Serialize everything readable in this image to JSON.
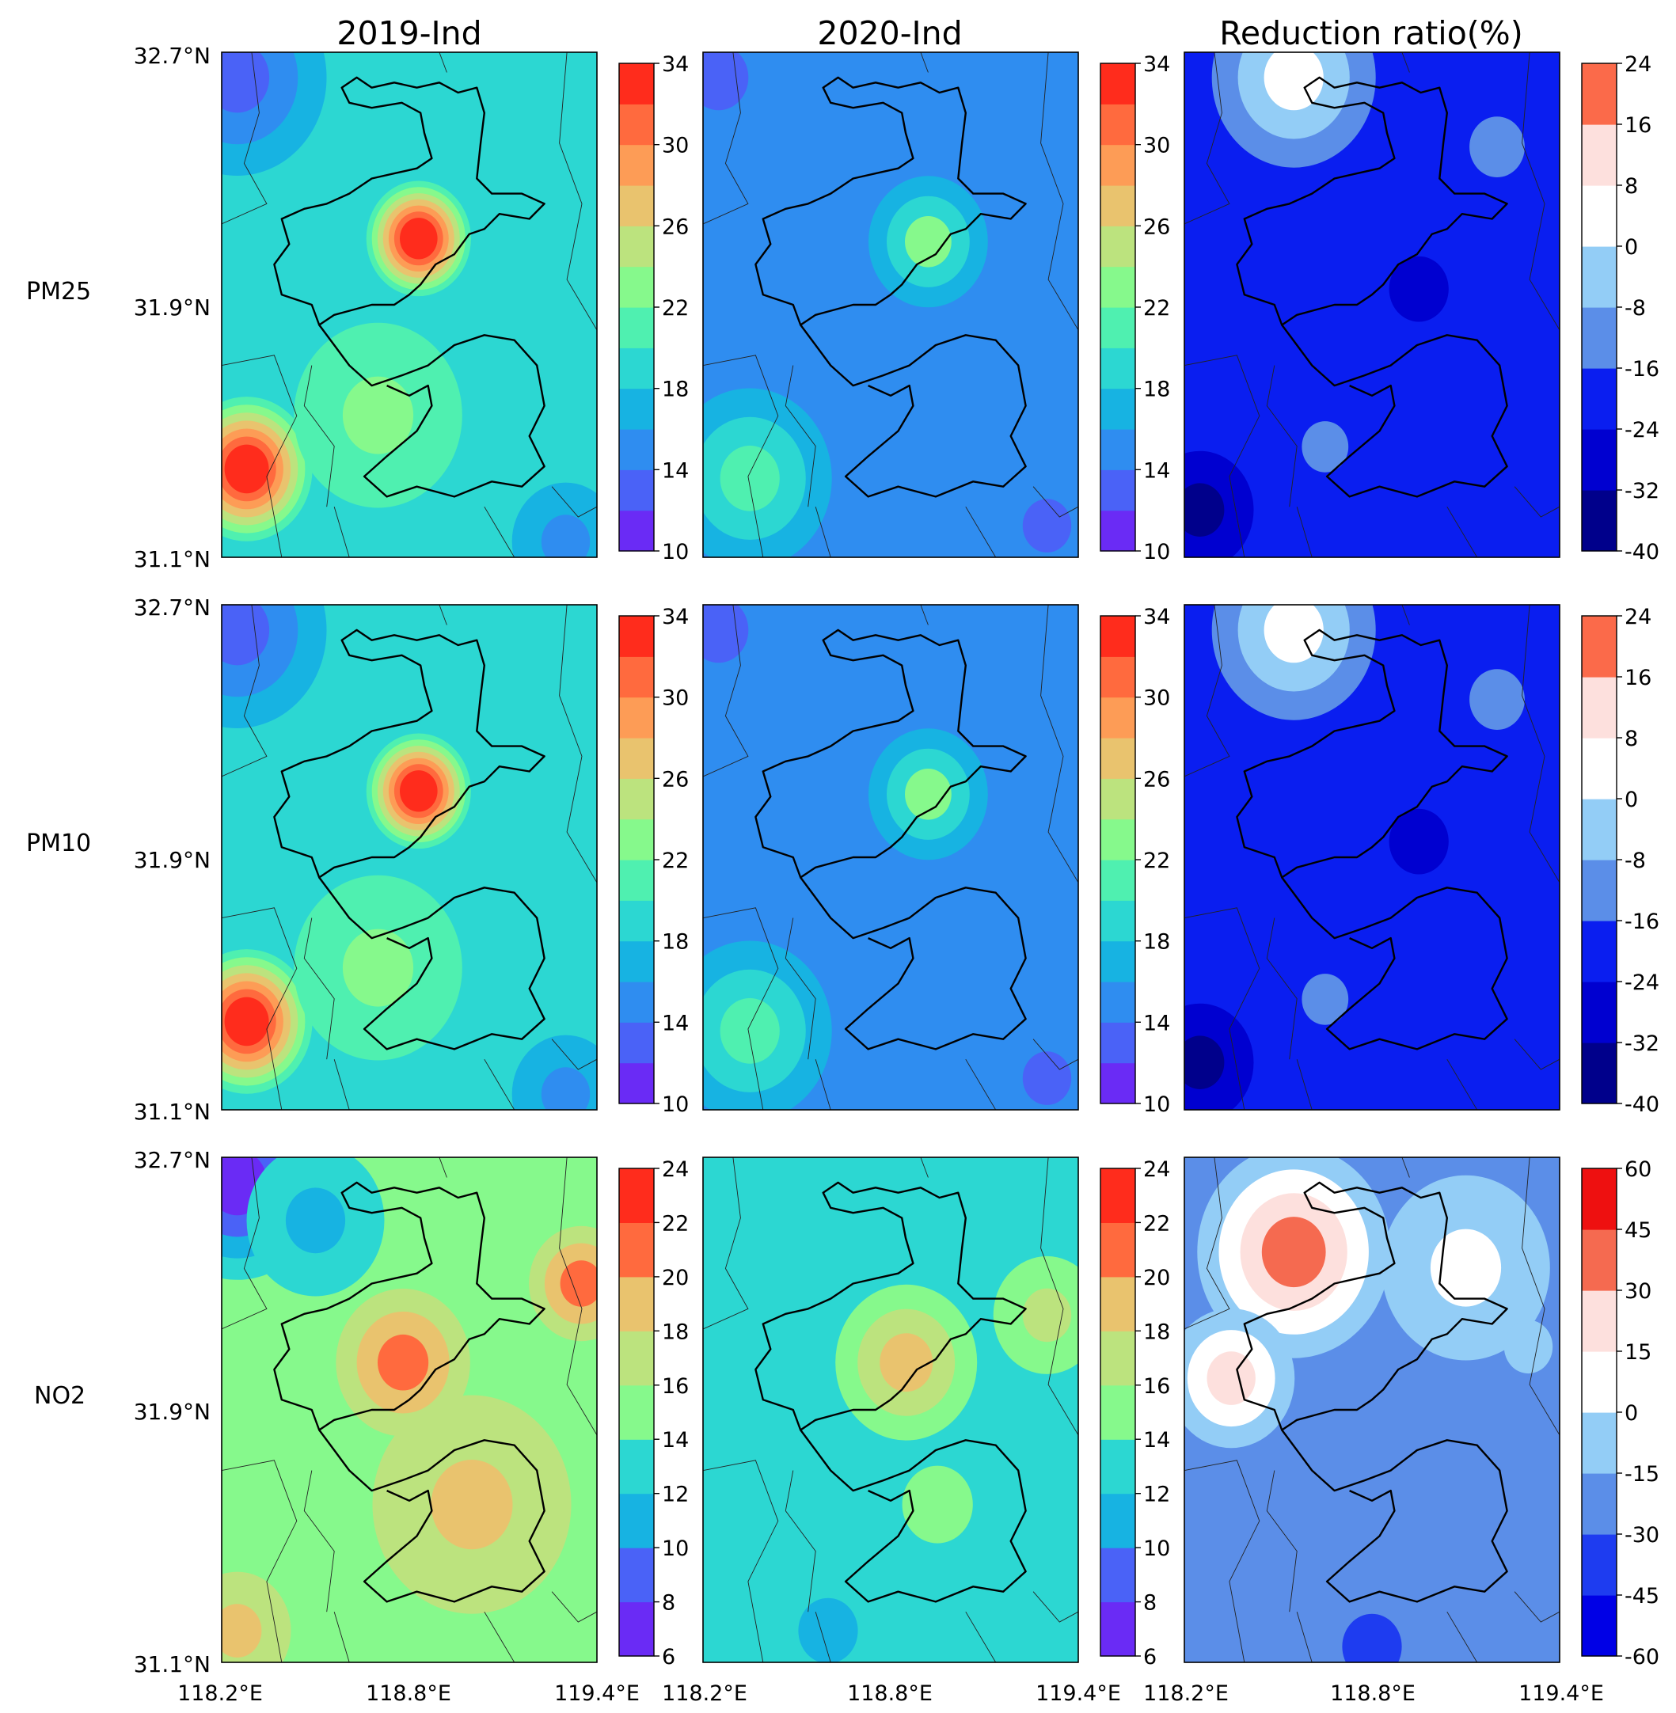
{
  "figure": {
    "column_titles": [
      "2019-Ind",
      "2020-Ind",
      "Reduction ratio(%)"
    ],
    "row_labels": [
      "PM25",
      "PM10",
      "NO2"
    ],
    "lat_ticks": [
      "32.7°N",
      "31.9°N",
      "31.1°N"
    ],
    "lon_ticks": [
      "118.2°E",
      "118.8°E",
      "119.4°E"
    ]
  },
  "chart_data": [
    {
      "type": "heatmap",
      "title": "2019-Ind",
      "row": "PM25",
      "variable": "PM25",
      "colormap": "rainbow",
      "xlim": [
        118.2,
        119.4
      ],
      "ylim": [
        31.1,
        32.7
      ],
      "colorbar": {
        "min": 10,
        "max": 34,
        "step": 2,
        "ticks": [
          "10",
          "14",
          "18",
          "22",
          "26",
          "30",
          "34"
        ]
      },
      "background_value": 19,
      "features": [
        {
          "lon": 118.83,
          "lat": 32.11,
          "value": 33,
          "extent": 0.1
        },
        {
          "lon": 118.28,
          "lat": 31.38,
          "value": 32,
          "extent": 0.13
        },
        {
          "lon": 118.25,
          "lat": 32.62,
          "value": 13,
          "extent": 0.22
        },
        {
          "lon": 118.7,
          "lat": 31.55,
          "value": 23,
          "extent": 0.25
        },
        {
          "lon": 119.3,
          "lat": 31.15,
          "value": 15,
          "extent": 0.15
        }
      ]
    },
    {
      "type": "heatmap",
      "title": "2020-Ind",
      "row": "PM25",
      "variable": "PM25",
      "colormap": "rainbow",
      "xlim": [
        118.2,
        119.4
      ],
      "ylim": [
        31.1,
        32.7
      ],
      "colorbar": {
        "min": 10,
        "max": 34,
        "step": 2,
        "ticks": [
          "10",
          "14",
          "18",
          "22",
          "26",
          "30",
          "34"
        ]
      },
      "background_value": 15.5,
      "features": [
        {
          "lon": 118.92,
          "lat": 32.1,
          "value": 22,
          "extent": 0.14
        },
        {
          "lon": 118.35,
          "lat": 31.35,
          "value": 21,
          "extent": 0.2
        },
        {
          "lon": 118.25,
          "lat": 32.62,
          "value": 13,
          "extent": 0.2
        },
        {
          "lon": 119.3,
          "lat": 31.2,
          "value": 13.5,
          "extent": 0.15
        }
      ]
    },
    {
      "type": "heatmap",
      "title": "Reduction ratio(%)",
      "row": "PM25",
      "variable": "PM25",
      "colormap": "blue-white-red",
      "xlim": [
        118.2,
        119.4
      ],
      "ylim": [
        31.1,
        32.7
      ],
      "colorbar": {
        "min": -40,
        "max": 24,
        "step": 8,
        "ticks": [
          "-40",
          "-32",
          "-24",
          "-16",
          "-8",
          "0",
          "8",
          "16",
          "24"
        ]
      },
      "background_value": -20,
      "features": [
        {
          "lon": 118.55,
          "lat": 32.62,
          "value": 4,
          "extent": 0.2
        },
        {
          "lon": 118.95,
          "lat": 31.95,
          "value": -30,
          "extent": 0.2
        },
        {
          "lon": 118.25,
          "lat": 31.25,
          "value": -33,
          "extent": 0.15
        },
        {
          "lon": 118.65,
          "lat": 31.45,
          "value": -12,
          "extent": 0.14
        },
        {
          "lon": 119.2,
          "lat": 32.4,
          "value": -9,
          "extent": 0.18
        }
      ]
    },
    {
      "type": "heatmap",
      "title": "2019-Ind",
      "row": "PM10",
      "variable": "PM10",
      "colormap": "rainbow",
      "xlim": [
        118.2,
        119.4
      ],
      "ylim": [
        31.1,
        32.7
      ],
      "colorbar": {
        "min": 10,
        "max": 34,
        "step": 2,
        "ticks": [
          "10",
          "14",
          "18",
          "22",
          "26",
          "30",
          "34"
        ]
      },
      "background_value": 19,
      "features": [
        {
          "lon": 118.83,
          "lat": 32.11,
          "value": 33,
          "extent": 0.1
        },
        {
          "lon": 118.28,
          "lat": 31.38,
          "value": 32,
          "extent": 0.13
        },
        {
          "lon": 118.25,
          "lat": 32.62,
          "value": 13,
          "extent": 0.22
        },
        {
          "lon": 118.7,
          "lat": 31.55,
          "value": 23,
          "extent": 0.25
        },
        {
          "lon": 119.3,
          "lat": 31.15,
          "value": 15,
          "extent": 0.15
        }
      ]
    },
    {
      "type": "heatmap",
      "title": "2020-Ind",
      "row": "PM10",
      "variable": "PM10",
      "colormap": "rainbow",
      "xlim": [
        118.2,
        119.4
      ],
      "ylim": [
        31.1,
        32.7
      ],
      "colorbar": {
        "min": 10,
        "max": 34,
        "step": 2,
        "ticks": [
          "10",
          "14",
          "18",
          "22",
          "26",
          "30",
          "34"
        ]
      },
      "background_value": 15.5,
      "features": [
        {
          "lon": 118.92,
          "lat": 32.1,
          "value": 22,
          "extent": 0.14
        },
        {
          "lon": 118.35,
          "lat": 31.35,
          "value": 21,
          "extent": 0.2
        },
        {
          "lon": 118.25,
          "lat": 32.62,
          "value": 13,
          "extent": 0.2
        },
        {
          "lon": 119.3,
          "lat": 31.2,
          "value": 13.5,
          "extent": 0.15
        }
      ]
    },
    {
      "type": "heatmap",
      "title": "Reduction ratio(%)",
      "row": "PM10",
      "variable": "PM10",
      "colormap": "blue-white-red",
      "xlim": [
        118.2,
        119.4
      ],
      "ylim": [
        31.1,
        32.7
      ],
      "colorbar": {
        "min": -40,
        "max": 24,
        "step": 8,
        "ticks": [
          "-40",
          "-32",
          "-24",
          "-16",
          "-8",
          "0",
          "8",
          "16",
          "24"
        ]
      },
      "background_value": -20,
      "features": [
        {
          "lon": 118.55,
          "lat": 32.62,
          "value": 4,
          "extent": 0.2
        },
        {
          "lon": 118.95,
          "lat": 31.95,
          "value": -30,
          "extent": 0.2
        },
        {
          "lon": 118.25,
          "lat": 31.25,
          "value": -33,
          "extent": 0.15
        },
        {
          "lon": 118.65,
          "lat": 31.45,
          "value": -12,
          "extent": 0.14
        },
        {
          "lon": 119.2,
          "lat": 32.4,
          "value": -9,
          "extent": 0.18
        }
      ]
    },
    {
      "type": "heatmap",
      "title": "2019-Ind",
      "row": "NO2",
      "variable": "NO2",
      "colormap": "rainbow",
      "xlim": [
        118.2,
        119.4
      ],
      "ylim": [
        31.1,
        32.7
      ],
      "colorbar": {
        "min": 6,
        "max": 24,
        "step": 2,
        "ticks": [
          "6",
          "8",
          "10",
          "12",
          "14",
          "16",
          "18",
          "20",
          "22",
          "24"
        ]
      },
      "background_value": 15,
      "features": [
        {
          "lon": 118.78,
          "lat": 32.05,
          "value": 21.5,
          "extent": 0.16
        },
        {
          "lon": 119.35,
          "lat": 32.3,
          "value": 21,
          "extent": 0.12
        },
        {
          "lon": 118.25,
          "lat": 32.62,
          "value": 7,
          "extent": 0.2
        },
        {
          "lon": 118.5,
          "lat": 32.5,
          "value": 10.5,
          "extent": 0.2
        },
        {
          "lon": 119.0,
          "lat": 31.6,
          "value": 19,
          "extent": 0.3
        },
        {
          "lon": 118.25,
          "lat": 31.2,
          "value": 19.5,
          "extent": 0.15
        }
      ]
    },
    {
      "type": "heatmap",
      "title": "2020-Ind",
      "row": "NO2",
      "variable": "NO2",
      "colormap": "rainbow",
      "xlim": [
        118.2,
        119.4
      ],
      "ylim": [
        31.1,
        32.7
      ],
      "colorbar": {
        "min": 6,
        "max": 24,
        "step": 2,
        "ticks": [
          "6",
          "8",
          "10",
          "12",
          "14",
          "16",
          "18",
          "20",
          "22",
          "24"
        ]
      },
      "background_value": 13.5,
      "features": [
        {
          "lon": 118.85,
          "lat": 32.05,
          "value": 19,
          "extent": 0.17
        },
        {
          "lon": 119.3,
          "lat": 32.2,
          "value": 17.5,
          "extent": 0.15
        },
        {
          "lon": 118.6,
          "lat": 31.2,
          "value": 11.5,
          "extent": 0.2
        },
        {
          "lon": 118.95,
          "lat": 31.6,
          "value": 15,
          "extent": 0.25
        }
      ]
    },
    {
      "type": "heatmap",
      "title": "Reduction ratio(%)",
      "row": "NO2",
      "variable": "NO2",
      "colormap": "blue-white-red",
      "xlim": [
        118.2,
        119.4
      ],
      "ylim": [
        31.1,
        32.7
      ],
      "colorbar": {
        "min": -60,
        "max": 60,
        "step": 15,
        "ticks": [
          "-60",
          "-45",
          "-30",
          "-15",
          "0",
          "15",
          "30",
          "45",
          "60"
        ]
      },
      "background_value": -22,
      "features": [
        {
          "lon": 118.55,
          "lat": 32.4,
          "value": 42,
          "extent": 0.22
        },
        {
          "lon": 118.35,
          "lat": 32.0,
          "value": 20,
          "extent": 0.15
        },
        {
          "lon": 119.1,
          "lat": 32.35,
          "value": 2,
          "extent": 0.25
        },
        {
          "lon": 119.3,
          "lat": 32.1,
          "value": -10,
          "extent": 0.15
        },
        {
          "lon": 118.8,
          "lat": 31.15,
          "value": -40,
          "extent": 0.2
        }
      ]
    }
  ]
}
